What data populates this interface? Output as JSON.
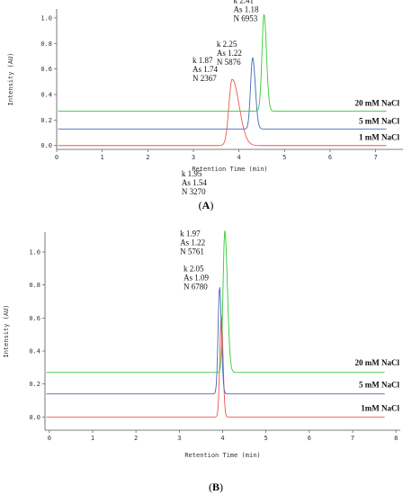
{
  "chart_data": [
    {
      "type": "line",
      "panel_label": "A",
      "xlabel": "Retention Time (min)",
      "ylabel": "Intensity (AU)",
      "xlim": [
        0,
        7.6
      ],
      "ylim": [
        -0.03,
        1.07
      ],
      "x_ticks": [
        "0",
        "1",
        "2",
        "3",
        "4",
        "5",
        "6",
        "7"
      ],
      "y_ticks": [
        "0.0",
        "0.2",
        "0.4",
        "0.6",
        "0.8",
        "1.0"
      ],
      "series": [
        {
          "name": "1 mM NaCl",
          "color": "#ee5555",
          "baseline": 0.0,
          "peak_x": 3.85,
          "peak_y": 0.52,
          "width": 0.07,
          "tail": 2.2,
          "annotation": [
            "k 1.87",
            "As 1.74",
            "N 2367"
          ]
        },
        {
          "name": "5 mM NaCl",
          "color": "#4466bb",
          "baseline": 0.13,
          "peak_x": 4.3,
          "peak_y": 0.69,
          "width": 0.045,
          "tail": 1.3,
          "annotation": [
            "k 2.25",
            "As 1.22",
            "N 5876"
          ]
        },
        {
          "name": "20 mM NaCl",
          "color": "#33cc33",
          "baseline": 0.27,
          "peak_x": 4.55,
          "peak_y": 1.03,
          "width": 0.045,
          "tail": 1.2,
          "annotation": [
            "k 2.41",
            "As 1.18",
            "N 6953"
          ]
        }
      ]
    },
    {
      "type": "line",
      "panel_label": "B",
      "xlabel": "Retention Time (min)",
      "ylabel": "Intensity (AU)",
      "xlim": [
        -0.1,
        8.1
      ],
      "ylim": [
        -0.08,
        1.12
      ],
      "x_ticks": [
        "0",
        "1",
        "2",
        "3",
        "4",
        "5",
        "6",
        "7",
        "8"
      ],
      "y_ticks": [
        "0.0",
        "0.2",
        "0.4",
        "0.6",
        "0.8",
        "1.0"
      ],
      "series": [
        {
          "name": "1mM NaCl",
          "color": "#ee5555",
          "baseline": 0.0,
          "peak_x": 3.97,
          "peak_y": 0.62,
          "width": 0.035,
          "tail": 1.1,
          "annotation": [
            "k 2.05",
            "As 1.09",
            "N 6780"
          ]
        },
        {
          "name": "5 mM NaCl",
          "color": "#4466bb",
          "baseline": 0.14,
          "peak_x": 3.93,
          "peak_y": 0.79,
          "width": 0.035,
          "tail": 1.2,
          "annotation": [
            "k 1.97",
            "As 1.22",
            "N 5761"
          ]
        },
        {
          "name": "20 mM NaCl",
          "color": "#33cc33",
          "baseline": 0.27,
          "peak_x": 4.05,
          "peak_y": 1.13,
          "width": 0.04,
          "tail": 1.5,
          "annotation": [
            "k 1.95",
            "As 1.54",
            "N 3270"
          ]
        }
      ]
    }
  ],
  "captions": {
    "A": "A",
    "B": "B"
  }
}
